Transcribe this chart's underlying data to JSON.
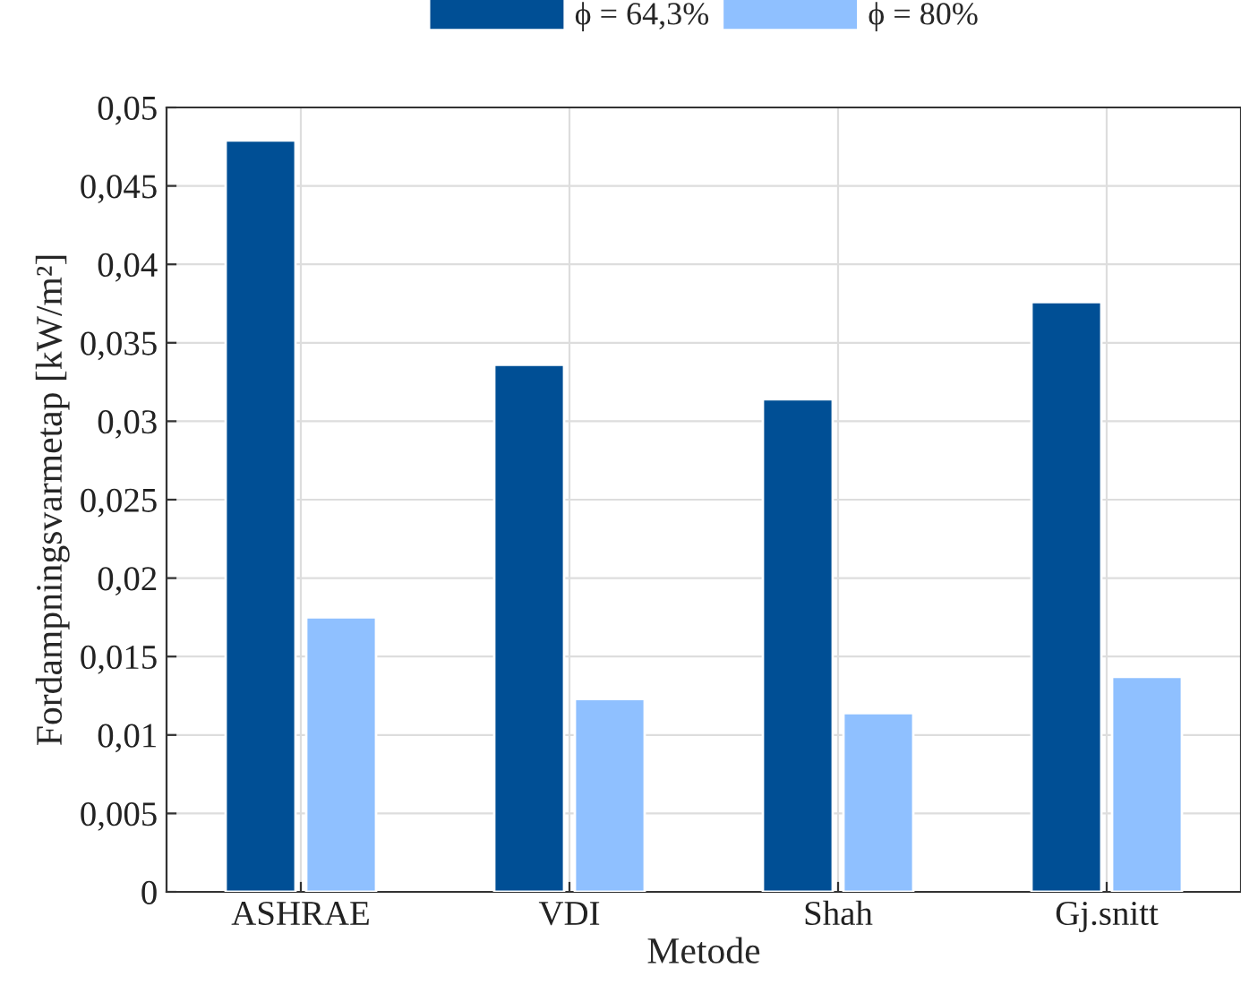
{
  "chart_data": {
    "type": "bar",
    "xlabel": "Metode",
    "ylabel": "Fordampningsvarmetap [kW/m²]",
    "categories": [
      "ASHRAE",
      "VDI",
      "Shah",
      "Gj.snitt"
    ],
    "series": [
      {
        "name": "ϕ = 64,3%",
        "color": "#004f95",
        "values": [
          0.0479,
          0.0336,
          0.0314,
          0.0376
        ]
      },
      {
        "name": "ϕ = 80%",
        "color": "#8fc0ff",
        "values": [
          0.0175,
          0.0123,
          0.0114,
          0.0137
        ]
      }
    ],
    "ylim": [
      0,
      0.05
    ],
    "yticks": [
      {
        "value": 0,
        "label": "0"
      },
      {
        "value": 0.005,
        "label": "0,005"
      },
      {
        "value": 0.01,
        "label": "0,01"
      },
      {
        "value": 0.015,
        "label": "0,015"
      },
      {
        "value": 0.02,
        "label": "0,02"
      },
      {
        "value": 0.025,
        "label": "0,025"
      },
      {
        "value": 0.03,
        "label": "0,03"
      },
      {
        "value": 0.035,
        "label": "0,035"
      },
      {
        "value": 0.04,
        "label": "0,04"
      },
      {
        "value": 0.045,
        "label": "0,045"
      },
      {
        "value": 0.05,
        "label": "0,05"
      }
    ],
    "grid": true,
    "legend": "top"
  }
}
